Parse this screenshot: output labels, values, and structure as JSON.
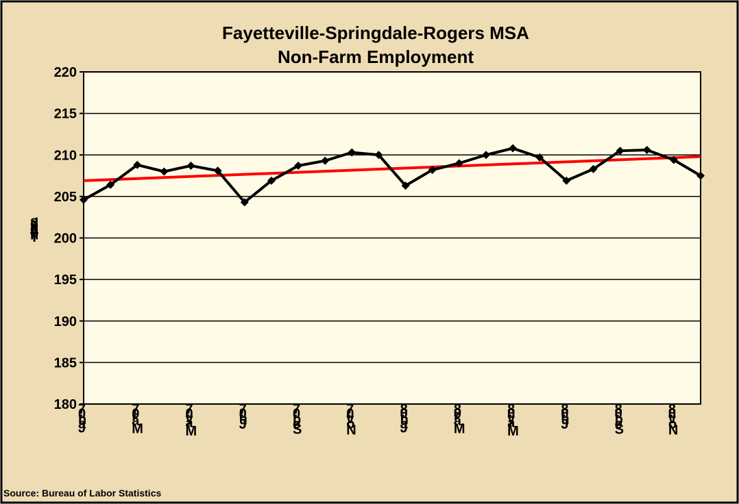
{
  "chart_data": {
    "type": "line",
    "title": [
      "Fayetteville-Springdale-Rogers MSA",
      "Non-Farm Employment"
    ],
    "y_label": "Thousands",
    "source": "Source: Bureau of Labor Statistics",
    "categories": [
      "Jan-07",
      null,
      "Mar-07",
      null,
      "May-07",
      null,
      "Jul-07",
      null,
      "Sep-07",
      null,
      "Nov-07",
      null,
      "Jan-08",
      null,
      "Mar-08",
      null,
      "May-08",
      null,
      "Jul-08",
      null,
      "Sep-08",
      null,
      "Nov-08",
      null
    ],
    "series": [
      {
        "color": "#000000",
        "values": [
          204.6,
          206.4,
          208.8,
          208.0,
          208.7,
          208.1,
          204.3,
          206.9,
          208.7,
          209.3,
          210.3,
          210.0,
          206.3,
          208.2,
          209.0,
          210.0,
          210.8,
          209.7,
          206.9,
          208.3,
          210.5,
          210.6,
          209.4,
          207.5
        ]
      }
    ],
    "trendline": {
      "color": "#ff0000",
      "start": 206.9,
      "end": 209.8
    },
    "ylim": [
      180,
      220
    ],
    "yticks": [
      180,
      185,
      190,
      195,
      200,
      205,
      210,
      215,
      220
    ],
    "grid": true
  }
}
